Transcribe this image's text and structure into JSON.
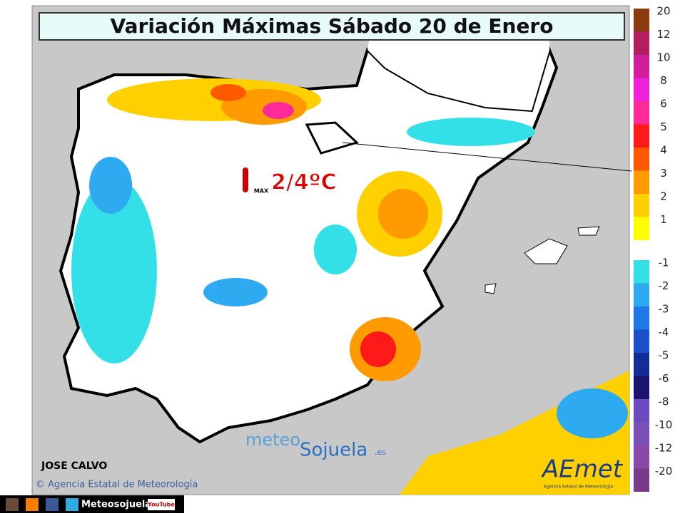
{
  "header": {
    "title": "Variación Máximas Sábado 20 de Enero"
  },
  "annotation": {
    "value": "2/4ºC",
    "icon_label": "MAX"
  },
  "author": "JOSE CALVO",
  "copyright": "© Agencia Estatal de Meteorología",
  "watermark": {
    "part1": "meteo",
    "part2": "Sojuela",
    "suffix": ".es"
  },
  "logo": {
    "name": "AEmet",
    "subtitle": "Agencia Estatal de Meteorología"
  },
  "footer": {
    "handle": "Meteosojuela",
    "youtube": "YouTube"
  },
  "legend": {
    "warm": [
      {
        "label": "20",
        "color": "#8b3a10"
      },
      {
        "label": "12",
        "color": "#b31e5e"
      },
      {
        "label": "10",
        "color": "#d21e9c"
      },
      {
        "label": "8",
        "color": "#ee22dd"
      },
      {
        "label": "6",
        "color": "#ff2a9a"
      },
      {
        "label": "5",
        "color": "#ff1a1a"
      },
      {
        "label": "4",
        "color": "#ff5a00"
      },
      {
        "label": "3",
        "color": "#ff9a00"
      },
      {
        "label": "2",
        "color": "#ffd000"
      },
      {
        "label": "1",
        "color": "#ffff00"
      }
    ],
    "cool": [
      {
        "label": "-1",
        "color": "#33e0e8"
      },
      {
        "label": "-2",
        "color": "#2eaaf0"
      },
      {
        "label": "-3",
        "color": "#1e78e6"
      },
      {
        "label": "-4",
        "color": "#1c50c8"
      },
      {
        "label": "-5",
        "color": "#142c96"
      },
      {
        "label": "-6",
        "color": "#1a1470"
      },
      {
        "label": "-8",
        "color": "#6a4cc0"
      },
      {
        "label": "-10",
        "color": "#7a50b8"
      },
      {
        "label": "-12",
        "color": "#8a48a8"
      },
      {
        "label": "-20",
        "color": "#7a3a8a"
      }
    ]
  }
}
